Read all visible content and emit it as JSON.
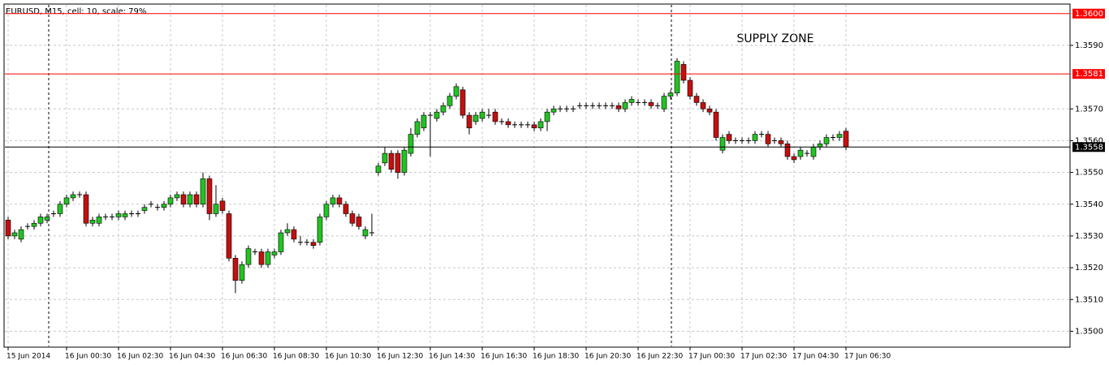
{
  "chart_data": {
    "type": "candlestick",
    "title": "EURUSD, M15, cell: 10, scale: 79%",
    "annotation": "SUPPLY ZONE",
    "up_color": "#22c322",
    "down_color": "#c41010",
    "grid": true,
    "ylim": [
      1.3495,
      1.3603
    ],
    "yticks": [
      {
        "value": 1.35,
        "label": "1.3500"
      },
      {
        "value": 1.351,
        "label": "1.3510"
      },
      {
        "value": 1.352,
        "label": "1.3520"
      },
      {
        "value": 1.353,
        "label": "1.3530"
      },
      {
        "value": 1.354,
        "label": "1.3540"
      },
      {
        "value": 1.355,
        "label": "1.3550"
      },
      {
        "value": 1.356,
        "label": "1.3560"
      },
      {
        "value": 1.357,
        "label": "1.3570"
      },
      {
        "value": 1.359,
        "label": "1.3590"
      }
    ],
    "hlines": [
      {
        "value": 1.36,
        "label": "1.3600",
        "color": "#ff0000"
      },
      {
        "value": 1.3581,
        "label": "1.3581",
        "color": "#ff0000"
      },
      {
        "value": 1.3558,
        "label": "1.3558",
        "color": "#000000"
      }
    ],
    "categories": [
      "15 Jun 2014",
      null,
      null,
      null,
      null,
      null,
      null,
      null,
      null,
      "16 Jun 00:30",
      null,
      null,
      null,
      null,
      null,
      null,
      null,
      "16 Jun 02:30",
      null,
      null,
      null,
      null,
      null,
      null,
      null,
      "16 Jun 04:30",
      null,
      null,
      null,
      null,
      null,
      null,
      null,
      "16 Jun 06:30",
      null,
      null,
      null,
      null,
      null,
      null,
      null,
      "16 Jun 08:30",
      null,
      null,
      null,
      null,
      null,
      null,
      null,
      "16 Jun 10:30",
      null,
      null,
      null,
      null,
      null,
      null,
      null,
      "16 Jun 12:30",
      null,
      null,
      null,
      null,
      null,
      null,
      null,
      "16 Jun 14:30",
      null,
      null,
      null,
      null,
      null,
      null,
      null,
      "16 Jun 16:30",
      null,
      null,
      null,
      null,
      null,
      null,
      null,
      "16 Jun 18:30",
      null,
      null,
      null,
      null,
      null,
      null,
      null,
      "16 Jun 20:30",
      null,
      null,
      null,
      null,
      null,
      null,
      null,
      "16 Jun 22:30",
      null,
      null,
      null,
      null,
      null,
      null,
      null,
      "17 Jun 00:30",
      null,
      null,
      null,
      null,
      null,
      null,
      null,
      "17 Jun 02:30",
      null,
      null,
      null,
      null,
      null,
      null,
      null,
      "17 Jun 04:30",
      null,
      null,
      null,
      null,
      null,
      null,
      null,
      "17 Jun 06:30"
    ],
    "ohlc": [
      [
        1.3535,
        1.3536,
        1.3529,
        1.353
      ],
      [
        1.353,
        1.3532,
        1.3529,
        1.3531
      ],
      [
        1.3529,
        1.3533,
        1.3528,
        1.3532
      ],
      [
        1.3533,
        1.3534,
        1.3532,
        1.3533
      ],
      [
        1.3533,
        1.3535,
        1.3532,
        1.3534
      ],
      [
        1.3534,
        1.3537,
        1.3533,
        1.3536
      ],
      [
        1.3535,
        1.3537,
        1.3534,
        1.3536
      ],
      [
        1.3537,
        1.3538,
        1.3536,
        1.3537
      ],
      [
        1.3537,
        1.3541,
        1.3536,
        1.354
      ],
      [
        1.354,
        1.3543,
        1.3539,
        1.3542
      ],
      [
        1.3542,
        1.3544,
        1.3541,
        1.3543
      ],
      [
        1.3543,
        1.3544,
        1.3542,
        1.3543
      ],
      [
        1.3543,
        1.3544,
        1.3533,
        1.3534
      ],
      [
        1.3534,
        1.3536,
        1.3533,
        1.3535
      ],
      [
        1.3534,
        1.3537,
        1.3533,
        1.3536
      ],
      [
        1.3536,
        1.3537,
        1.3535,
        1.3536
      ],
      [
        1.3536,
        1.3537,
        1.3535,
        1.3536
      ],
      [
        1.3536,
        1.3538,
        1.3535,
        1.3537
      ],
      [
        1.3536,
        1.3538,
        1.3535,
        1.3537
      ],
      [
        1.3537,
        1.3538,
        1.3536,
        1.3537
      ],
      [
        1.3537,
        1.3538,
        1.3536,
        1.3537
      ],
      [
        1.3538,
        1.354,
        1.3537,
        1.3539
      ],
      [
        1.354,
        1.3541,
        1.3539,
        1.354
      ],
      [
        1.3539,
        1.354,
        1.3538,
        1.3539
      ],
      [
        1.3539,
        1.3541,
        1.3538,
        1.354
      ],
      [
        1.354,
        1.3543,
        1.3539,
        1.3542
      ],
      [
        1.3542,
        1.3544,
        1.3541,
        1.3543
      ],
      [
        1.3543,
        1.3544,
        1.3539,
        1.354
      ],
      [
        1.354,
        1.3544,
        1.3539,
        1.3543
      ],
      [
        1.3543,
        1.3544,
        1.3539,
        1.354
      ],
      [
        1.354,
        1.355,
        1.3539,
        1.3548
      ],
      [
        1.3548,
        1.3549,
        1.3535,
        1.3537
      ],
      [
        1.3537,
        1.3546,
        1.3536,
        1.354
      ],
      [
        1.3541,
        1.3542,
        1.3537,
        1.3538
      ],
      [
        1.3537,
        1.3538,
        1.3522,
        1.3523
      ],
      [
        1.3523,
        1.3524,
        1.3512,
        1.3516
      ],
      [
        1.3516,
        1.3522,
        1.3515,
        1.3521
      ],
      [
        1.3521,
        1.3527,
        1.352,
        1.3526
      ],
      [
        1.3525,
        1.3526,
        1.3524,
        1.3525
      ],
      [
        1.3525,
        1.3526,
        1.352,
        1.3521
      ],
      [
        1.3521,
        1.3526,
        1.352,
        1.3525
      ],
      [
        1.3524,
        1.3526,
        1.3523,
        1.3525
      ],
      [
        1.3525,
        1.3532,
        1.3524,
        1.3531
      ],
      [
        1.3531,
        1.3534,
        1.353,
        1.3532
      ],
      [
        1.3532,
        1.3533,
        1.3528,
        1.3529
      ],
      [
        1.3528,
        1.353,
        1.3527,
        1.3528
      ],
      [
        1.3528,
        1.3529,
        1.3527,
        1.3528
      ],
      [
        1.3528,
        1.3529,
        1.3526,
        1.3527
      ],
      [
        1.3528,
        1.3537,
        1.3527,
        1.3536
      ],
      [
        1.3536,
        1.3541,
        1.3535,
        1.354
      ],
      [
        1.354,
        1.3543,
        1.3539,
        1.3542
      ],
      [
        1.3542,
        1.3543,
        1.3539,
        1.354
      ],
      [
        1.354,
        1.3541,
        1.3536,
        1.3537
      ],
      [
        1.3537,
        1.3538,
        1.3533,
        1.3534
      ],
      [
        1.3536,
        1.3537,
        1.3532,
        1.3533
      ],
      [
        1.353,
        1.3533,
        1.3529,
        1.3532
      ],
      [
        1.3531,
        1.3537,
        1.353,
        1.3531
      ],
      [
        1.355,
        1.3553,
        1.3549,
        1.3552
      ],
      [
        1.3553,
        1.3558,
        1.3552,
        1.3556
      ],
      [
        1.3556,
        1.3557,
        1.355,
        1.3551
      ],
      [
        1.3556,
        1.3557,
        1.3548,
        1.355
      ],
      [
        1.355,
        1.3558,
        1.3549,
        1.3557
      ],
      [
        1.3556,
        1.3564,
        1.3555,
        1.3562
      ],
      [
        1.3562,
        1.3567,
        1.3561,
        1.3566
      ],
      [
        1.3564,
        1.3569,
        1.3563,
        1.3568
      ],
      [
        1.3568,
        1.3569,
        1.3555,
        1.3568
      ],
      [
        1.3567,
        1.357,
        1.3566,
        1.3569
      ],
      [
        1.3569,
        1.3572,
        1.3568,
        1.3571
      ],
      [
        1.3571,
        1.3575,
        1.357,
        1.3574
      ],
      [
        1.3574,
        1.3578,
        1.3573,
        1.3577
      ],
      [
        1.3576,
        1.3577,
        1.3567,
        1.3568
      ],
      [
        1.3568,
        1.3569,
        1.3562,
        1.3564
      ],
      [
        1.3566,
        1.3569,
        1.3565,
        1.3568
      ],
      [
        1.3567,
        1.357,
        1.3566,
        1.3569
      ],
      [
        1.3568,
        1.357,
        1.3567,
        1.3568
      ],
      [
        1.3569,
        1.357,
        1.3565,
        1.3566
      ],
      [
        1.3566,
        1.3567,
        1.3565,
        1.3566
      ],
      [
        1.3566,
        1.3567,
        1.3564,
        1.3565
      ],
      [
        1.3565,
        1.3566,
        1.3564,
        1.3565
      ],
      [
        1.3565,
        1.3566,
        1.3564,
        1.3565
      ],
      [
        1.3565,
        1.3566,
        1.3564,
        1.3565
      ],
      [
        1.3565,
        1.3566,
        1.3563,
        1.3564
      ],
      [
        1.3564,
        1.3567,
        1.3563,
        1.3566
      ],
      [
        1.3566,
        1.357,
        1.3563,
        1.3569
      ],
      [
        1.3569,
        1.3571,
        1.3568,
        1.357
      ],
      [
        1.357,
        1.3571,
        1.3569,
        1.357
      ],
      [
        1.357,
        1.3571,
        1.3569,
        1.357
      ],
      [
        1.357,
        1.3571,
        1.3569,
        1.357
      ],
      [
        1.3571,
        1.3572,
        1.357,
        1.3571
      ],
      [
        1.3571,
        1.3572,
        1.357,
        1.3571
      ],
      [
        1.3571,
        1.3572,
        1.357,
        1.3571
      ],
      [
        1.3571,
        1.3572,
        1.357,
        1.3571
      ],
      [
        1.3571,
        1.3572,
        1.357,
        1.3571
      ],
      [
        1.3571,
        1.3572,
        1.357,
        1.3571
      ],
      [
        1.3571,
        1.3572,
        1.3569,
        1.357
      ],
      [
        1.357,
        1.3573,
        1.3569,
        1.3572
      ],
      [
        1.3572,
        1.3574,
        1.3571,
        1.3573
      ],
      [
        1.3572,
        1.3573,
        1.3571,
        1.3572
      ],
      [
        1.3572,
        1.3573,
        1.3571,
        1.3572
      ],
      [
        1.3572,
        1.3573,
        1.357,
        1.3571
      ],
      [
        1.3571,
        1.3572,
        1.357,
        1.3571
      ],
      [
        1.357,
        1.3575,
        1.3569,
        1.3574
      ],
      [
        1.3574,
        1.3576,
        1.3573,
        1.3575
      ],
      [
        1.3575,
        1.3586,
        1.3574,
        1.3585
      ],
      [
        1.3584,
        1.3585,
        1.3578,
        1.3579
      ],
      [
        1.3579,
        1.358,
        1.3573,
        1.3574
      ],
      [
        1.3574,
        1.3575,
        1.3571,
        1.3572
      ],
      [
        1.3572,
        1.3573,
        1.3569,
        1.357
      ],
      [
        1.357,
        1.3571,
        1.3568,
        1.3569
      ],
      [
        1.3569,
        1.357,
        1.356,
        1.3561
      ],
      [
        1.3557,
        1.3562,
        1.3556,
        1.3561
      ],
      [
        1.3562,
        1.3563,
        1.3559,
        1.356
      ],
      [
        1.356,
        1.3561,
        1.3559,
        1.356
      ],
      [
        1.356,
        1.3561,
        1.3559,
        1.356
      ],
      [
        1.356,
        1.3561,
        1.3559,
        1.356
      ],
      [
        1.356,
        1.3563,
        1.3559,
        1.3562
      ],
      [
        1.3562,
        1.3563,
        1.3561,
        1.3562
      ],
      [
        1.3562,
        1.3563,
        1.3558,
        1.3559
      ],
      [
        1.356,
        1.3561,
        1.3559,
        1.356
      ],
      [
        1.356,
        1.3561,
        1.3558,
        1.3559
      ],
      [
        1.3559,
        1.356,
        1.3554,
        1.3555
      ],
      [
        1.3555,
        1.3556,
        1.3553,
        1.3554
      ],
      [
        1.3555,
        1.3558,
        1.3554,
        1.3557
      ],
      [
        1.3556,
        1.3557,
        1.3555,
        1.3556
      ],
      [
        1.3555,
        1.3559,
        1.3554,
        1.3558
      ],
      [
        1.3558,
        1.356,
        1.3557,
        1.3559
      ],
      [
        1.3559,
        1.3562,
        1.3558,
        1.3561
      ],
      [
        1.3561,
        1.3562,
        1.356,
        1.3561
      ],
      [
        1.3561,
        1.3563,
        1.356,
        1.3562
      ],
      [
        1.3563,
        1.3564,
        1.3557,
        1.3558
      ]
    ]
  }
}
